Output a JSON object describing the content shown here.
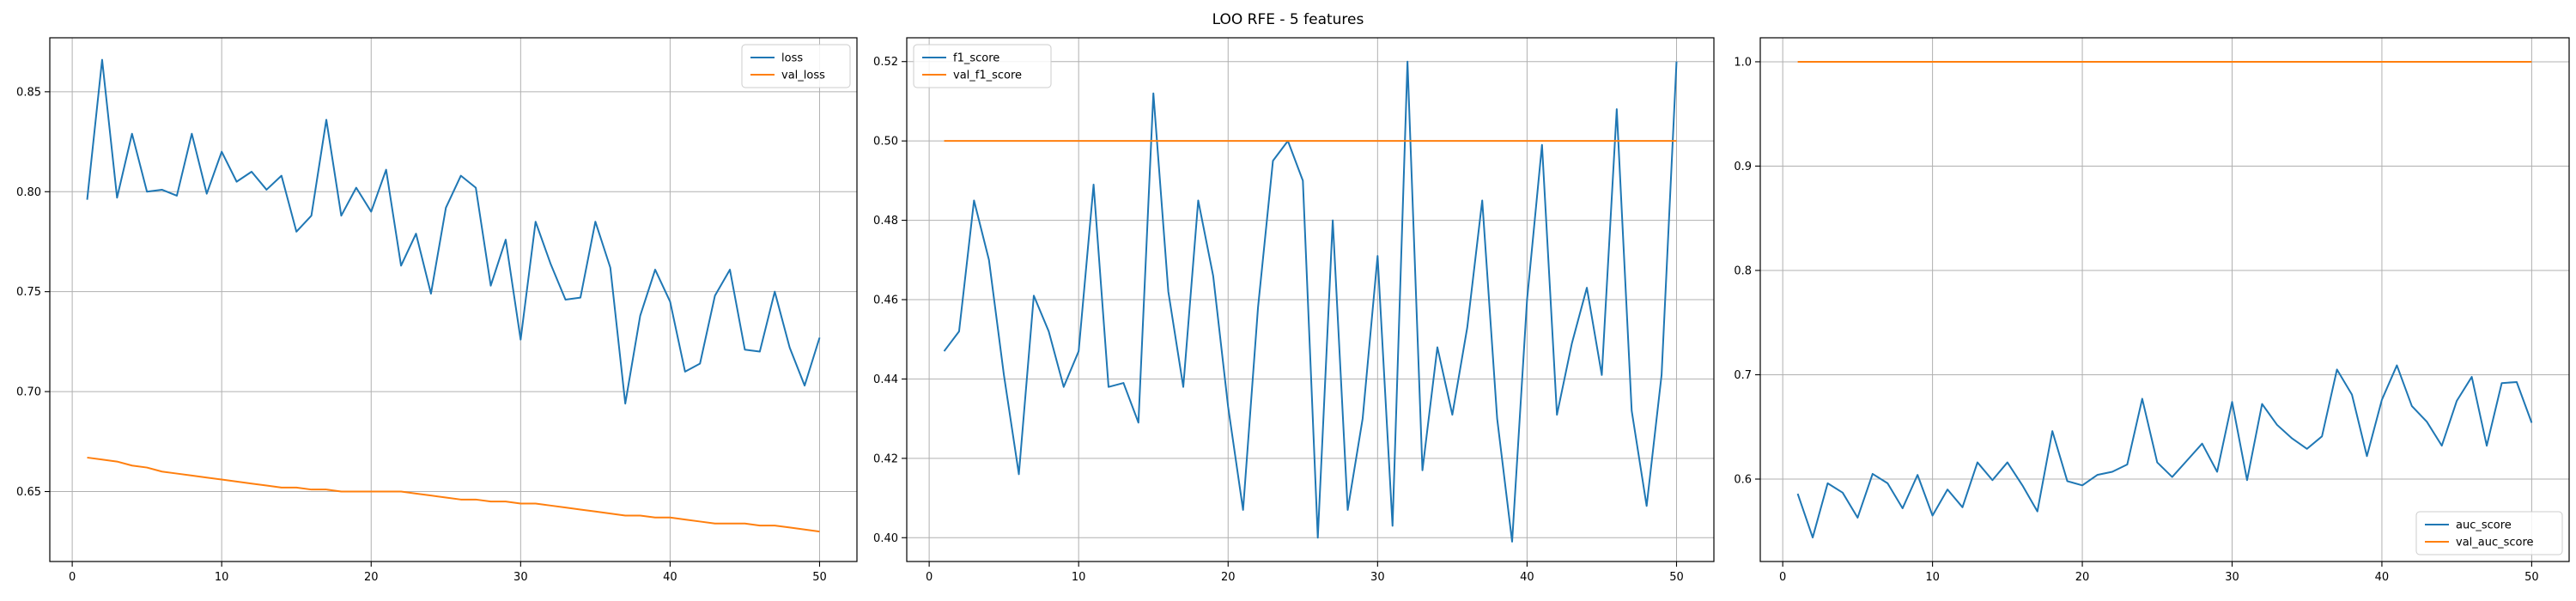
{
  "figure": {
    "title": "LOO RFE - 5 features"
  },
  "chart_data": [
    {
      "type": "line",
      "title": "",
      "xlabel": "",
      "ylabel": "",
      "grid": true,
      "legend_position": "top-right",
      "xlim": [
        -1.5,
        52.5
      ],
      "ylim": [
        0.615,
        0.877
      ],
      "xticks": [
        0,
        10,
        20,
        30,
        40,
        50
      ],
      "yticks": [
        0.65,
        0.7,
        0.75,
        0.8,
        0.85
      ],
      "ytick_labels": [
        "0.65",
        "0.70",
        "0.75",
        "0.80",
        "0.85"
      ],
      "x": [
        1,
        2,
        3,
        4,
        5,
        6,
        7,
        8,
        9,
        10,
        11,
        12,
        13,
        14,
        15,
        16,
        17,
        18,
        19,
        20,
        21,
        22,
        23,
        24,
        25,
        26,
        27,
        28,
        29,
        30,
        31,
        32,
        33,
        34,
        35,
        36,
        37,
        38,
        39,
        40,
        41,
        42,
        43,
        44,
        45,
        46,
        47,
        48,
        49,
        50
      ],
      "series": [
        {
          "name": "loss",
          "color": "#1f77b4",
          "values": [
            0.796,
            0.866,
            0.797,
            0.829,
            0.8,
            0.801,
            0.798,
            0.829,
            0.799,
            0.82,
            0.805,
            0.81,
            0.801,
            0.808,
            0.78,
            0.788,
            0.836,
            0.788,
            0.802,
            0.79,
            0.811,
            0.763,
            0.779,
            0.749,
            0.792,
            0.808,
            0.802,
            0.753,
            0.776,
            0.726,
            0.785,
            0.764,
            0.746,
            0.747,
            0.785,
            0.762,
            0.694,
            0.738,
            0.761,
            0.745,
            0.71,
            0.714,
            0.748,
            0.761,
            0.721,
            0.72,
            0.75,
            0.722,
            0.703,
            0.727
          ]
        },
        {
          "name": "val_loss",
          "color": "#ff7f0e",
          "values": [
            0.667,
            0.666,
            0.665,
            0.663,
            0.662,
            0.66,
            0.659,
            0.658,
            0.657,
            0.656,
            0.655,
            0.654,
            0.653,
            0.652,
            0.652,
            0.651,
            0.651,
            0.65,
            0.65,
            0.65,
            0.65,
            0.65,
            0.649,
            0.648,
            0.647,
            0.646,
            0.646,
            0.645,
            0.645,
            0.644,
            0.644,
            0.643,
            0.642,
            0.641,
            0.64,
            0.639,
            0.638,
            0.638,
            0.637,
            0.637,
            0.636,
            0.635,
            0.634,
            0.634,
            0.634,
            0.633,
            0.633,
            0.632,
            0.631,
            0.63
          ]
        }
      ]
    },
    {
      "type": "line",
      "title": "",
      "xlabel": "",
      "ylabel": "",
      "grid": true,
      "legend_position": "top-left",
      "xlim": [
        -1.5,
        52.5
      ],
      "ylim": [
        0.394,
        0.526
      ],
      "xticks": [
        0,
        10,
        20,
        30,
        40,
        50
      ],
      "yticks": [
        0.4,
        0.42,
        0.44,
        0.46,
        0.48,
        0.5,
        0.52
      ],
      "ytick_labels": [
        "0.40",
        "0.42",
        "0.44",
        "0.46",
        "0.48",
        "0.50",
        "0.52"
      ],
      "x": [
        1,
        2,
        3,
        4,
        5,
        6,
        7,
        8,
        9,
        10,
        11,
        12,
        13,
        14,
        15,
        16,
        17,
        18,
        19,
        20,
        21,
        22,
        23,
        24,
        25,
        26,
        27,
        28,
        29,
        30,
        31,
        32,
        33,
        34,
        35,
        36,
        37,
        38,
        39,
        40,
        41,
        42,
        43,
        44,
        45,
        46,
        47,
        48,
        49,
        50
      ],
      "series": [
        {
          "name": "f1_score",
          "color": "#1f77b4",
          "values": [
            0.447,
            0.452,
            0.485,
            0.47,
            0.441,
            0.416,
            0.461,
            0.452,
            0.438,
            0.447,
            0.489,
            0.438,
            0.439,
            0.429,
            0.512,
            0.462,
            0.438,
            0.485,
            0.466,
            0.433,
            0.407,
            0.458,
            0.495,
            0.5,
            0.49,
            0.4,
            0.48,
            0.407,
            0.43,
            0.471,
            0.403,
            0.52,
            0.417,
            0.448,
            0.431,
            0.453,
            0.485,
            0.43,
            0.399,
            0.46,
            0.499,
            0.431,
            0.449,
            0.463,
            0.441,
            0.508,
            0.432,
            0.408,
            0.441,
            0.52
          ]
        },
        {
          "name": "val_f1_score",
          "color": "#ff7f0e",
          "values": [
            0.5,
            0.5,
            0.5,
            0.5,
            0.5,
            0.5,
            0.5,
            0.5,
            0.5,
            0.5,
            0.5,
            0.5,
            0.5,
            0.5,
            0.5,
            0.5,
            0.5,
            0.5,
            0.5,
            0.5,
            0.5,
            0.5,
            0.5,
            0.5,
            0.5,
            0.5,
            0.5,
            0.5,
            0.5,
            0.5,
            0.5,
            0.5,
            0.5,
            0.5,
            0.5,
            0.5,
            0.5,
            0.5,
            0.5,
            0.5,
            0.5,
            0.5,
            0.5,
            0.5,
            0.5,
            0.5,
            0.5,
            0.5,
            0.5,
            0.5
          ]
        }
      ]
    },
    {
      "type": "line",
      "title": "",
      "xlabel": "",
      "ylabel": "",
      "grid": true,
      "legend_position": "bottom-right",
      "xlim": [
        -1.5,
        52.5
      ],
      "ylim": [
        0.521,
        1.023
      ],
      "xticks": [
        0,
        10,
        20,
        30,
        40,
        50
      ],
      "yticks": [
        0.6,
        0.7,
        0.8,
        0.9,
        1.0
      ],
      "ytick_labels": [
        "0.6",
        "0.7",
        "0.8",
        "0.9",
        "1.0"
      ],
      "x": [
        1,
        2,
        3,
        4,
        5,
        6,
        7,
        8,
        9,
        10,
        11,
        12,
        13,
        14,
        15,
        16,
        17,
        18,
        19,
        20,
        21,
        22,
        23,
        24,
        25,
        26,
        27,
        28,
        29,
        30,
        31,
        32,
        33,
        34,
        35,
        36,
        37,
        38,
        39,
        40,
        41,
        42,
        43,
        44,
        45,
        46,
        47,
        48,
        49,
        50
      ],
      "series": [
        {
          "name": "auc_score",
          "color": "#1f77b4",
          "values": [
            0.586,
            0.544,
            0.596,
            0.587,
            0.563,
            0.605,
            0.596,
            0.572,
            0.604,
            0.565,
            0.59,
            0.573,
            0.616,
            0.599,
            0.616,
            0.594,
            0.569,
            0.646,
            0.598,
            0.594,
            0.604,
            0.607,
            0.614,
            0.677,
            0.616,
            0.602,
            0.618,
            0.634,
            0.607,
            0.674,
            0.599,
            0.672,
            0.652,
            0.639,
            0.629,
            0.641,
            0.705,
            0.681,
            0.622,
            0.676,
            0.709,
            0.67,
            0.655,
            0.632,
            0.675,
            0.698,
            0.632,
            0.692,
            0.693,
            0.654
          ]
        },
        {
          "name": "val_auc_score",
          "color": "#ff7f0e",
          "values": [
            1.0,
            1.0,
            1.0,
            1.0,
            1.0,
            1.0,
            1.0,
            1.0,
            1.0,
            1.0,
            1.0,
            1.0,
            1.0,
            1.0,
            1.0,
            1.0,
            1.0,
            1.0,
            1.0,
            1.0,
            1.0,
            1.0,
            1.0,
            1.0,
            1.0,
            1.0,
            1.0,
            1.0,
            1.0,
            1.0,
            1.0,
            1.0,
            1.0,
            1.0,
            1.0,
            1.0,
            1.0,
            1.0,
            1.0,
            1.0,
            1.0,
            1.0,
            1.0,
            1.0,
            1.0,
            1.0,
            1.0,
            1.0,
            1.0,
            1.0
          ]
        }
      ]
    }
  ]
}
